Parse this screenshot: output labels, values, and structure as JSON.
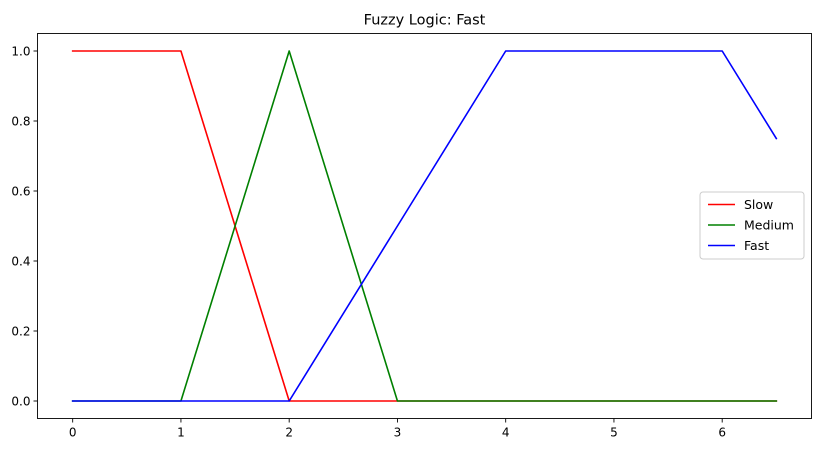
{
  "chart_data": {
    "type": "line",
    "title": "Fuzzy Logic: Fast",
    "xlabel": "",
    "ylabel": "",
    "xlim": [
      -0.325,
      6.825
    ],
    "ylim": [
      -0.05,
      1.05
    ],
    "xticks": [
      0,
      1,
      2,
      3,
      4,
      5,
      6
    ],
    "yticks": [
      0.0,
      0.2,
      0.4,
      0.6,
      0.8,
      1.0
    ],
    "xtick_labels": [
      "0",
      "1",
      "2",
      "3",
      "4",
      "5",
      "6"
    ],
    "ytick_labels": [
      "0.0",
      "0.2",
      "0.4",
      "0.6",
      "0.8",
      "1.0"
    ],
    "grid": false,
    "legend_position": "center-right",
    "series": [
      {
        "name": "Slow",
        "color": "#ff0000",
        "x": [
          0,
          1,
          2,
          3,
          4,
          5,
          6,
          6.5
        ],
        "y": [
          1.0,
          1.0,
          0.0,
          0.0,
          0.0,
          0.0,
          0.0,
          0.0
        ]
      },
      {
        "name": "Medium",
        "color": "#008000",
        "x": [
          0,
          1,
          2,
          3,
          4,
          5,
          6,
          6.5
        ],
        "y": [
          0.0,
          0.0,
          1.0,
          0.0,
          0.0,
          0.0,
          0.0,
          0.0
        ]
      },
      {
        "name": "Fast",
        "color": "#0000ff",
        "x": [
          0,
          1,
          2,
          3,
          4,
          5,
          6,
          6.5
        ],
        "y": [
          0.0,
          0.0,
          0.0,
          0.5,
          1.0,
          1.0,
          1.0,
          0.75
        ]
      }
    ]
  }
}
